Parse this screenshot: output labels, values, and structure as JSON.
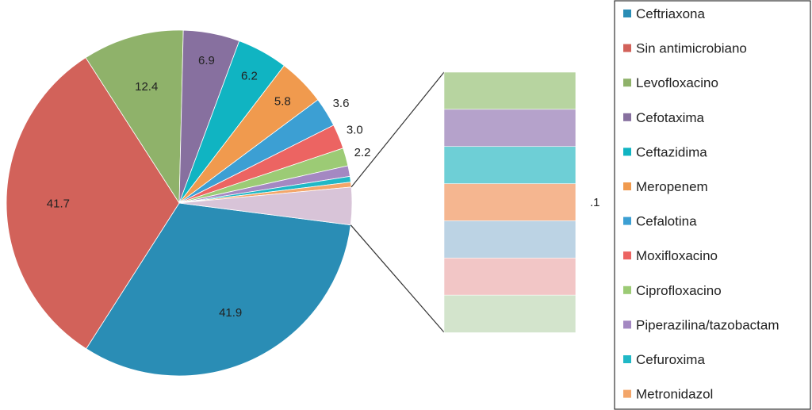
{
  "chart_data": {
    "type": "pie",
    "title": "",
    "slices": [
      {
        "name": "Ceftriaxona",
        "value": 41.9,
        "label": "41.9",
        "color": "#2a8db5"
      },
      {
        "name": "Sin antimicrobiano",
        "value": 41.7,
        "label": "41.7",
        "color": "#d2625a"
      },
      {
        "name": "Levofloxacino",
        "value": 12.4,
        "label": "12.4",
        "color": "#8fb26a"
      },
      {
        "name": "Cefotaxima",
        "value": 6.9,
        "label": "6.9",
        "color": "#87709f"
      },
      {
        "name": "Ceftazidima",
        "value": 6.2,
        "label": "6.2",
        "color": "#10b4c2"
      },
      {
        "name": "Meropenem",
        "value": 5.8,
        "label": "5.8",
        "color": "#f09a4e"
      },
      {
        "name": "Cefalotina",
        "value": 3.6,
        "label": "3.6",
        "color": "#3c9fd3"
      },
      {
        "name": "Moxifloxacino",
        "value": 3.0,
        "label": "3.0",
        "color": "#ec6462"
      },
      {
        "name": "Ciprofloxacino",
        "value": 2.2,
        "label": "2.2",
        "color": "#9ccb75"
      },
      {
        "name": "Piperazilina/tazobactam",
        "value": 1.3,
        "label": "",
        "color": "#a488c2"
      },
      {
        "name": "Cefuroxima",
        "value": 0.7,
        "label": "",
        "color": "#20b8c6"
      },
      {
        "name": "Metronidazol",
        "value": 0.6,
        "label": "",
        "color": "#f3a66a"
      }
    ],
    "others_bar": {
      "label": ".1",
      "colors": [
        "#b7d4a0",
        "#b5a2cb",
        "#6ecfd6",
        "#f5b690",
        "#bcd3e4",
        "#f2c6c6",
        "#d3e4cc"
      ]
    },
    "others_share": 0.035,
    "legend_position": "right"
  }
}
